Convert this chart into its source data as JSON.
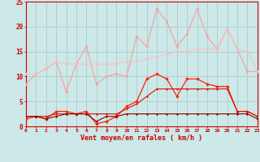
{
  "x": [
    0,
    1,
    2,
    3,
    4,
    5,
    6,
    7,
    8,
    9,
    10,
    11,
    12,
    13,
    14,
    15,
    16,
    17,
    18,
    19,
    20,
    21,
    22,
    23
  ],
  "line1_y": [
    8.5,
    10.5,
    11.5,
    13.0,
    7.0,
    12.5,
    16.0,
    8.5,
    10.0,
    10.5,
    10.0,
    18.0,
    16.0,
    23.5,
    21.0,
    16.0,
    18.5,
    23.5,
    18.0,
    15.5,
    19.5,
    15.5,
    11.0,
    11.0
  ],
  "line2_y": [
    10.5,
    10.5,
    11.5,
    13.0,
    12.5,
    12.5,
    12.5,
    12.5,
    12.5,
    12.5,
    13.0,
    13.0,
    13.5,
    14.0,
    14.5,
    15.0,
    15.0,
    15.5,
    15.5,
    15.5,
    19.5,
    15.5,
    15.0,
    11.0
  ],
  "line3_y": [
    1.5,
    2.0,
    1.5,
    3.0,
    3.0,
    2.5,
    3.0,
    0.5,
    1.0,
    2.0,
    4.0,
    5.0,
    9.5,
    10.5,
    9.5,
    6.0,
    9.5,
    9.5,
    8.5,
    8.0,
    8.0,
    3.0,
    3.0,
    2.0
  ],
  "line4_y": [
    2.0,
    2.0,
    2.0,
    2.5,
    2.5,
    2.5,
    2.5,
    2.5,
    2.5,
    2.5,
    3.5,
    4.5,
    6.0,
    7.5,
    7.5,
    7.5,
    7.5,
    7.5,
    7.5,
    7.5,
    7.5,
    3.0,
    3.0,
    2.0
  ],
  "line5_y": [
    2.0,
    2.0,
    1.5,
    2.0,
    2.5,
    2.5,
    2.5,
    1.0,
    2.0,
    2.0,
    2.5,
    2.5,
    2.5,
    2.5,
    2.5,
    2.5,
    2.5,
    2.5,
    2.5,
    2.5,
    2.5,
    2.5,
    2.5,
    1.5
  ],
  "xlabel": "Vent moyen/en rafales ( km/h )",
  "bg_color": "#cce8e8",
  "grid_color": "#aacccc",
  "line1_color": "#ff9999",
  "line2_color": "#ffbbbb",
  "line3_color": "#ff2200",
  "line4_color": "#dd1100",
  "line5_color": "#880000",
  "ylim": [
    0,
    25
  ],
  "xlim": [
    0,
    23
  ]
}
